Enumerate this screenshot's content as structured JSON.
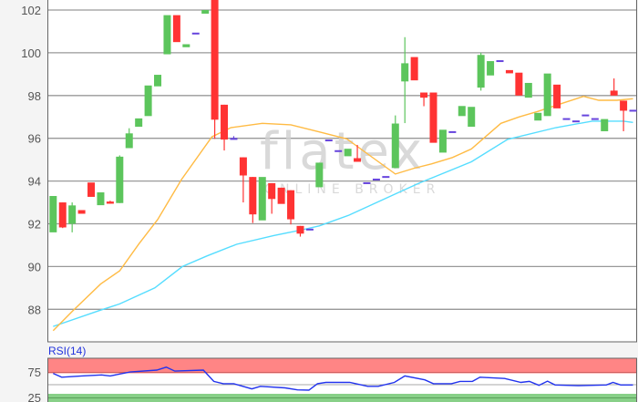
{
  "chart_data": {
    "type": "candlestick",
    "title": "",
    "watermark": {
      "logo": "flatex",
      "tagline": "ONLINE BROKER"
    },
    "price_axis": {
      "ylim": [
        86.8,
        102.5
      ],
      "ticks": [
        88,
        90,
        92,
        94,
        96,
        98,
        100,
        102
      ],
      "grid": true
    },
    "colors": {
      "up": "#5cc55c",
      "down": "#ff3333",
      "doji": "#6644dd",
      "ma_short": "#ffbb44",
      "ma_long": "#55ddff",
      "rsi_line": "#2233ee",
      "overbought_band": "#ff8585",
      "oversold_band": "#88d088"
    },
    "candles_ohlc": [
      [
        91.6,
        93.3,
        91.6,
        93.3
      ],
      [
        93.0,
        93.0,
        91.8,
        91.83
      ],
      [
        92.0,
        93.0,
        91.6,
        92.86
      ],
      [
        92.64,
        92.64,
        92.47,
        92.47
      ],
      [
        93.93,
        93.93,
        93.26,
        93.26
      ],
      [
        92.87,
        93.47,
        92.87,
        93.47
      ],
      [
        93.04,
        93.08,
        92.94,
        92.94
      ],
      [
        92.97,
        95.2,
        92.97,
        95.14
      ],
      [
        95.54,
        96.47,
        95.54,
        96.23
      ],
      [
        96.54,
        96.93,
        96.54,
        96.93
      ],
      [
        97.04,
        98.47,
        97.04,
        98.47
      ],
      [
        98.43,
        98.97,
        98.43,
        98.97
      ],
      [
        99.93,
        101.76,
        99.93,
        101.76
      ],
      [
        101.76,
        101.76,
        100.5,
        100.5
      ],
      [
        100.26,
        100.4,
        100.26,
        100.4
      ],
      [
        100.9,
        100.9,
        100.9,
        100.9
      ],
      [
        101.83,
        102.0,
        101.83,
        102.0
      ],
      [
        102.6,
        102.6,
        95.97,
        96.87
      ],
      [
        97.57,
        97.57,
        95.43,
        95.94
      ],
      [
        95.97,
        96.1,
        95.97,
        95.97
      ],
      [
        95.11,
        95.11,
        93.0,
        94.26
      ],
      [
        94.19,
        94.19,
        92.04,
        92.44
      ],
      [
        92.16,
        94.19,
        92.16,
        94.19
      ],
      [
        93.9,
        93.9,
        92.47,
        93.16
      ],
      [
        93.69,
        93.69,
        92.93,
        92.93
      ],
      [
        93.57,
        93.57,
        91.97,
        92.21
      ],
      [
        91.9,
        91.9,
        91.4,
        91.54
      ],
      [
        91.73,
        91.73,
        91.73,
        91.73
      ],
      [
        93.71,
        94.86,
        93.71,
        94.86
      ],
      [
        95.9,
        95.9,
        95.9,
        95.9
      ],
      [
        95.4,
        95.4,
        95.4,
        95.4
      ],
      [
        95.16,
        95.51,
        95.16,
        95.51
      ],
      [
        95.07,
        95.69,
        94.9,
        94.9
      ],
      [
        93.9,
        93.9,
        93.9,
        93.9
      ],
      [
        94.07,
        94.07,
        94.07,
        94.07
      ],
      [
        94.19,
        94.19,
        94.19,
        94.19
      ],
      [
        94.61,
        97.07,
        94.61,
        96.69
      ],
      [
        98.66,
        100.73,
        96.71,
        99.51
      ],
      [
        99.8,
        99.8,
        98.71,
        98.71
      ],
      [
        98.14,
        98.14,
        97.5,
        97.9
      ],
      [
        98.14,
        98.14,
        95.79,
        95.79
      ],
      [
        95.33,
        96.4,
        95.33,
        96.4
      ],
      [
        96.29,
        96.29,
        96.29,
        96.29
      ],
      [
        97.04,
        97.51,
        97.04,
        97.51
      ],
      [
        96.54,
        97.47,
        96.54,
        97.47
      ],
      [
        98.37,
        100.0,
        98.23,
        99.9
      ],
      [
        98.94,
        99.61,
        98.94,
        99.61
      ],
      [
        99.61,
        99.61,
        99.61,
        99.61
      ],
      [
        99.19,
        99.19,
        99.04,
        99.04
      ],
      [
        99.07,
        99.07,
        98.0,
        98.0
      ],
      [
        97.9,
        98.59,
        97.9,
        98.59
      ],
      [
        96.83,
        97.19,
        96.83,
        97.19
      ],
      [
        97.04,
        99.03,
        97.04,
        99.03
      ],
      [
        98.51,
        98.51,
        97.4,
        97.4
      ],
      [
        96.9,
        96.9,
        96.9,
        96.9
      ],
      [
        96.79,
        96.79,
        96.79,
        96.79
      ],
      [
        97.07,
        97.07,
        97.07,
        97.07
      ],
      [
        96.9,
        96.9,
        96.9,
        96.9
      ],
      [
        96.33,
        96.9,
        96.33,
        96.9
      ],
      [
        98.23,
        98.8,
        98.0,
        98.0
      ],
      [
        97.76,
        97.76,
        96.33,
        97.29
      ],
      [
        97.29,
        97.29,
        97.29,
        97.29
      ]
    ],
    "ma_short": [
      [
        0,
        87.0
      ],
      [
        2,
        87.9
      ],
      [
        5,
        89.18
      ],
      [
        7,
        89.8
      ],
      [
        9,
        91.05
      ],
      [
        11,
        92.2
      ],
      [
        13.5,
        94.07
      ],
      [
        16.7,
        96.07
      ],
      [
        18.7,
        96.5
      ],
      [
        22,
        96.7
      ],
      [
        25,
        96.63
      ],
      [
        28,
        96.3
      ],
      [
        30.9,
        95.97
      ],
      [
        36,
        94.33
      ],
      [
        38,
        94.6
      ],
      [
        39.8,
        94.8
      ],
      [
        42,
        95.1
      ],
      [
        44,
        95.5
      ],
      [
        47.1,
        96.7
      ],
      [
        49,
        97.0
      ],
      [
        51,
        97.26
      ],
      [
        53.6,
        97.64
      ],
      [
        55.8,
        97.96
      ],
      [
        57.4,
        97.78
      ],
      [
        59.3,
        97.78
      ],
      [
        61,
        97.85
      ]
    ],
    "ma_long": [
      [
        0,
        87.2
      ],
      [
        5,
        87.96
      ],
      [
        7,
        88.25
      ],
      [
        10.7,
        89.0
      ],
      [
        13.6,
        90.0
      ],
      [
        16.2,
        90.5
      ],
      [
        19.3,
        91.04
      ],
      [
        23.2,
        91.45
      ],
      [
        26,
        91.7
      ],
      [
        28,
        91.9
      ],
      [
        31.1,
        92.4
      ],
      [
        36,
        93.4
      ],
      [
        38.5,
        93.9
      ],
      [
        44,
        94.9
      ],
      [
        47.8,
        95.95
      ],
      [
        52.9,
        96.5
      ],
      [
        56.7,
        96.8
      ],
      [
        60,
        96.8
      ],
      [
        61,
        96.74
      ]
    ],
    "rsi": {
      "label": "RSI(14)",
      "ticks": [
        75,
        25
      ],
      "overbought": 75,
      "oversold": 25,
      "midline": 50,
      "values": [
        [
          0,
          71.9
        ],
        [
          0.9,
          64.4
        ],
        [
          3,
          66.9
        ],
        [
          5.1,
          68.8
        ],
        [
          6,
          66.9
        ],
        [
          8.1,
          74.4
        ],
        [
          10.9,
          78.1
        ],
        [
          11.9,
          83.8
        ],
        [
          12.8,
          76.3
        ],
        [
          15.8,
          78.1
        ],
        [
          16.9,
          56.3
        ],
        [
          17.9,
          51.9
        ],
        [
          19,
          51.9
        ],
        [
          20.9,
          41.9
        ],
        [
          21.8,
          46.9
        ],
        [
          24.4,
          43.8
        ],
        [
          25.7,
          40.0
        ],
        [
          26.9,
          39.4
        ],
        [
          27.8,
          51.9
        ],
        [
          28.7,
          54.4
        ],
        [
          31.2,
          54.4
        ],
        [
          33.1,
          46.9
        ],
        [
          34.2,
          46.9
        ],
        [
          35.9,
          54.4
        ],
        [
          37,
          66.9
        ],
        [
          39.1,
          59.4
        ],
        [
          40,
          51.9
        ],
        [
          41.9,
          51.9
        ],
        [
          42.8,
          56.3
        ],
        [
          44.1,
          56.3
        ],
        [
          44.9,
          64.4
        ],
        [
          47.5,
          61.9
        ],
        [
          49.2,
          54.4
        ],
        [
          50.1,
          56.3
        ],
        [
          51.1,
          48.8
        ],
        [
          52,
          56.9
        ],
        [
          52.8,
          49.4
        ],
        [
          55.2,
          48.1
        ],
        [
          58.2,
          49.4
        ],
        [
          58.9,
          54.4
        ],
        [
          59.7,
          49.4
        ],
        [
          61,
          49.4
        ]
      ]
    }
  }
}
